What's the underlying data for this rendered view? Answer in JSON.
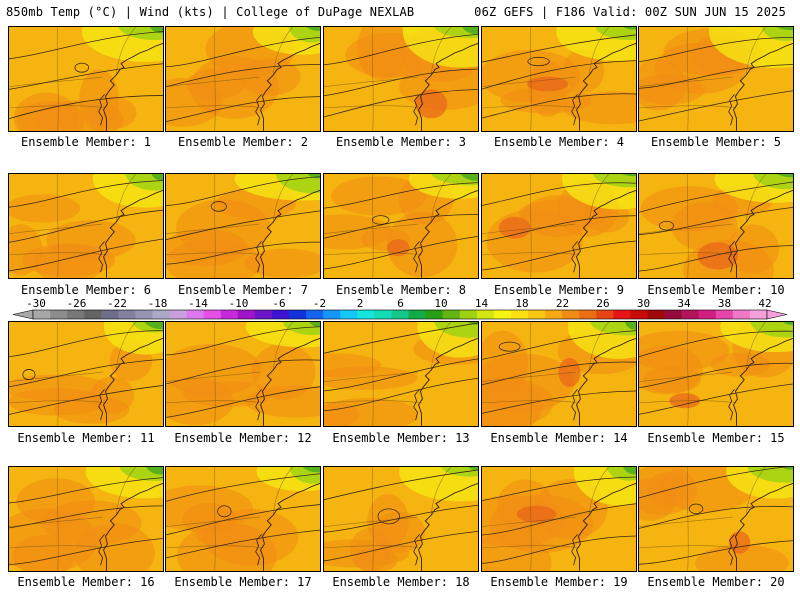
{
  "header": {
    "left_title": "850mb Temp (°C) | Wind (kts) | College of DuPage NEXLAB",
    "right_title": "06Z GEFS | F186 Valid: 00Z SUN JUN 15 2025"
  },
  "panels": [
    {
      "label": "Ensemble Member: 1"
    },
    {
      "label": "Ensemble Member: 2"
    },
    {
      "label": "Ensemble Member: 3"
    },
    {
      "label": "Ensemble Member: 4"
    },
    {
      "label": "Ensemble Member: 5"
    },
    {
      "label": "Ensemble Member: 6"
    },
    {
      "label": "Ensemble Member: 7"
    },
    {
      "label": "Ensemble Member: 8"
    },
    {
      "label": "Ensemble Member: 9"
    },
    {
      "label": "Ensemble Member: 10"
    },
    {
      "label": "Ensemble Member: 11"
    },
    {
      "label": "Ensemble Member: 12"
    },
    {
      "label": "Ensemble Member: 13"
    },
    {
      "label": "Ensemble Member: 14"
    },
    {
      "label": "Ensemble Member: 15"
    },
    {
      "label": "Ensemble Member: 16"
    },
    {
      "label": "Ensemble Member: 17"
    },
    {
      "label": "Ensemble Member: 18"
    },
    {
      "label": "Ensemble Member: 19"
    },
    {
      "label": "Ensemble Member: 20"
    }
  ],
  "colorbar": {
    "ticks": [
      "-30",
      "-26",
      "-22",
      "-18",
      "-14",
      "-10",
      "-6",
      "-2",
      "2",
      "6",
      "10",
      "14",
      "18",
      "22",
      "26",
      "30",
      "34",
      "38",
      "42"
    ],
    "colors": [
      "#a8a8a8",
      "#8c8c8c",
      "#787878",
      "#646464",
      "#6e6e8c",
      "#8282a0",
      "#9696b4",
      "#aaaac8",
      "#c8a0dc",
      "#dc78f0",
      "#e650e6",
      "#c828dc",
      "#a014c8",
      "#6e14c8",
      "#3c14d2",
      "#1432dc",
      "#1464f0",
      "#1496fa",
      "#14c8fa",
      "#14e6dc",
      "#14dcb4",
      "#14c88c",
      "#14aa46",
      "#28a014",
      "#64b414",
      "#a0d214",
      "#d2e614",
      "#f5f514",
      "#fae114",
      "#fac814",
      "#f5aa14",
      "#f08c14",
      "#eb6e14",
      "#e64614",
      "#e61414",
      "#c80a0a",
      "#a00a0a",
      "#960a3c",
      "#b4145a",
      "#d21e82",
      "#e646aa",
      "#f078c8",
      "#f5a0dc"
    ]
  }
}
